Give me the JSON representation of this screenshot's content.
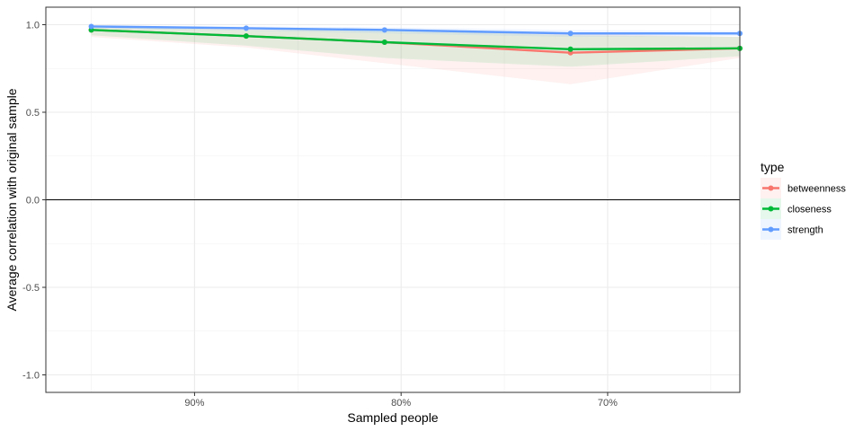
{
  "chart_data": {
    "type": "line",
    "xlabel": "Sampled people",
    "ylabel": "Average correlation with original sample",
    "x_reversed": true,
    "xlim": [
      63.6,
      97.2
    ],
    "ylim": [
      -1.1,
      1.1
    ],
    "x_ticks": [
      90,
      80,
      70
    ],
    "x_tick_labels": [
      "90%",
      "80%",
      "70%"
    ],
    "y_ticks": [
      -1.0,
      -0.5,
      0.0,
      0.5,
      1.0
    ],
    "y_tick_labels": [
      "-1.0",
      "-0.5",
      "0.0",
      "0.5",
      "1.0"
    ],
    "hline": 0,
    "grid": true,
    "legend": {
      "title": "type",
      "position": "right"
    },
    "x": [
      95,
      87.5,
      80.8,
      71.8,
      63.6
    ],
    "series": [
      {
        "name": "betweenness",
        "color": "#F8766D",
        "fill": "#F8766D",
        "values": [
          0.97,
          0.935,
          0.9,
          0.84,
          0.865
        ],
        "lower": [
          0.93,
          0.87,
          0.78,
          0.66,
          0.81
        ],
        "upper": [
          0.995,
          0.98,
          0.96,
          0.95,
          0.93
        ]
      },
      {
        "name": "closeness",
        "color": "#00BA38",
        "fill": "#00BA38",
        "values": [
          0.97,
          0.935,
          0.9,
          0.86,
          0.865
        ],
        "lower": [
          0.94,
          0.88,
          0.81,
          0.76,
          0.82
        ],
        "upper": [
          0.99,
          0.97,
          0.97,
          0.94,
          0.93
        ]
      },
      {
        "name": "strength",
        "color": "#619CFF",
        "fill": "#619CFF",
        "values": [
          0.99,
          0.98,
          0.97,
          0.95,
          0.95
        ],
        "lower": [
          0.98,
          0.965,
          0.95,
          0.93,
          0.935
        ],
        "upper": [
          0.995,
          0.99,
          0.985,
          0.97,
          0.965
        ]
      }
    ]
  }
}
